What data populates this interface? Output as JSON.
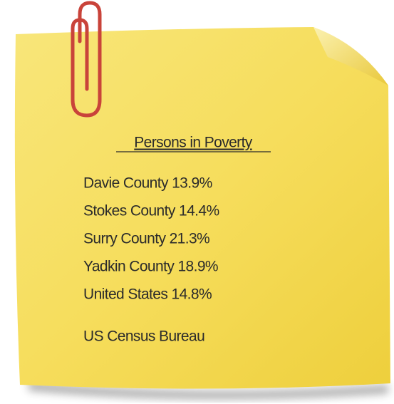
{
  "note": {
    "title": "Persons in Poverty",
    "lines": [
      "Davie County 13.9%",
      "Stokes County 14.4%",
      "Surry County 21.3%",
      "Yadkin County 18.9%",
      "United States 14.8%"
    ],
    "source": "US Census Bureau"
  }
}
